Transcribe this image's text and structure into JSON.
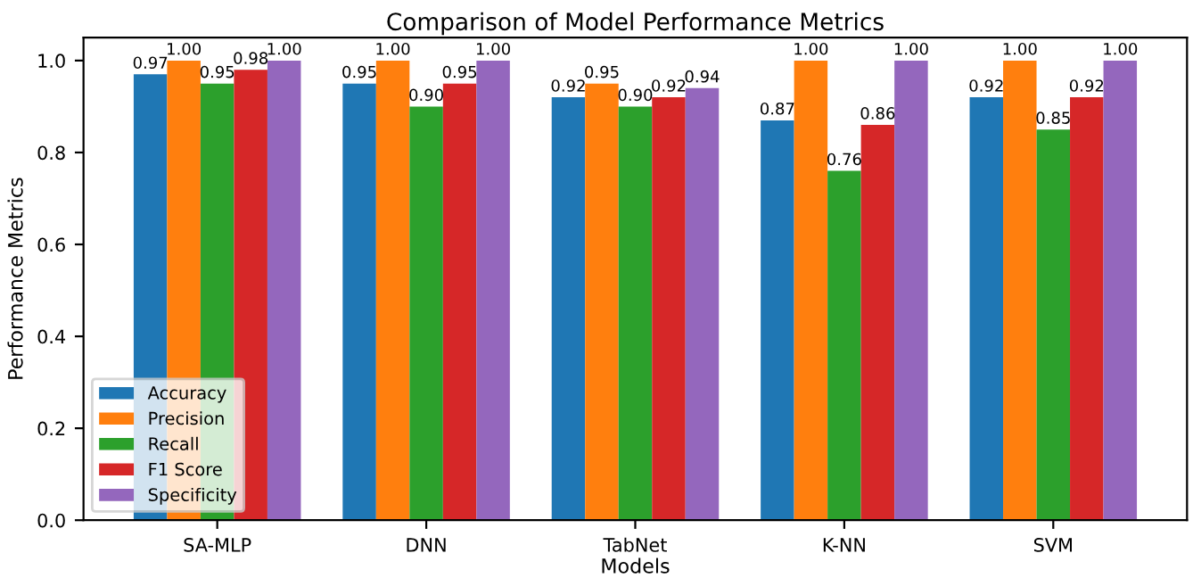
{
  "chart_data": {
    "type": "bar",
    "title": "Comparison of Model Performance Metrics",
    "xlabel": "Models",
    "ylabel": "Performance Metrics",
    "categories": [
      "SA-MLP",
      "DNN",
      "TabNet",
      "K-NN",
      "SVM"
    ],
    "series": [
      {
        "name": "Accuracy",
        "color": "#1f77b4",
        "values": [
          0.97,
          0.95,
          0.92,
          0.87,
          0.92
        ],
        "value_labels": [
          "0.97",
          "0.95",
          "0.92",
          "0.87",
          "0.92"
        ]
      },
      {
        "name": "Precision",
        "color": "#ff7f0e",
        "values": [
          1.0,
          1.0,
          0.95,
          1.0,
          1.0
        ],
        "value_labels": [
          "1.00",
          "1.00",
          "0.95",
          "1.00",
          "1.00"
        ]
      },
      {
        "name": "Recall",
        "color": "#2ca02c",
        "values": [
          0.95,
          0.9,
          0.9,
          0.76,
          0.85
        ],
        "value_labels": [
          "0.95",
          "0.90",
          "0.90",
          "0.76",
          "0.85"
        ]
      },
      {
        "name": "F1 Score",
        "color": "#d62728",
        "values": [
          0.98,
          0.95,
          0.92,
          0.86,
          0.92
        ],
        "value_labels": [
          "0.98",
          "0.95",
          "0.92",
          "0.86",
          "0.92"
        ]
      },
      {
        "name": "Specificity",
        "color": "#9467bd",
        "values": [
          1.0,
          1.0,
          0.94,
          1.0,
          1.0
        ],
        "value_labels": [
          "1.00",
          "1.00",
          "0.94",
          "1.00",
          "1.00"
        ]
      }
    ],
    "ylim": [
      0,
      1.05
    ],
    "yticks": [
      {
        "value": 0,
        "label": "0.0"
      },
      {
        "value": 0.2,
        "label": "0.2"
      },
      {
        "value": 0.4,
        "label": "0.4"
      },
      {
        "value": 0.6,
        "label": "0.6"
      },
      {
        "value": 0.8,
        "label": "0.8"
      },
      {
        "value": 1.0,
        "label": "1.0"
      }
    ],
    "legend": "bottom left",
    "grid": false
  }
}
